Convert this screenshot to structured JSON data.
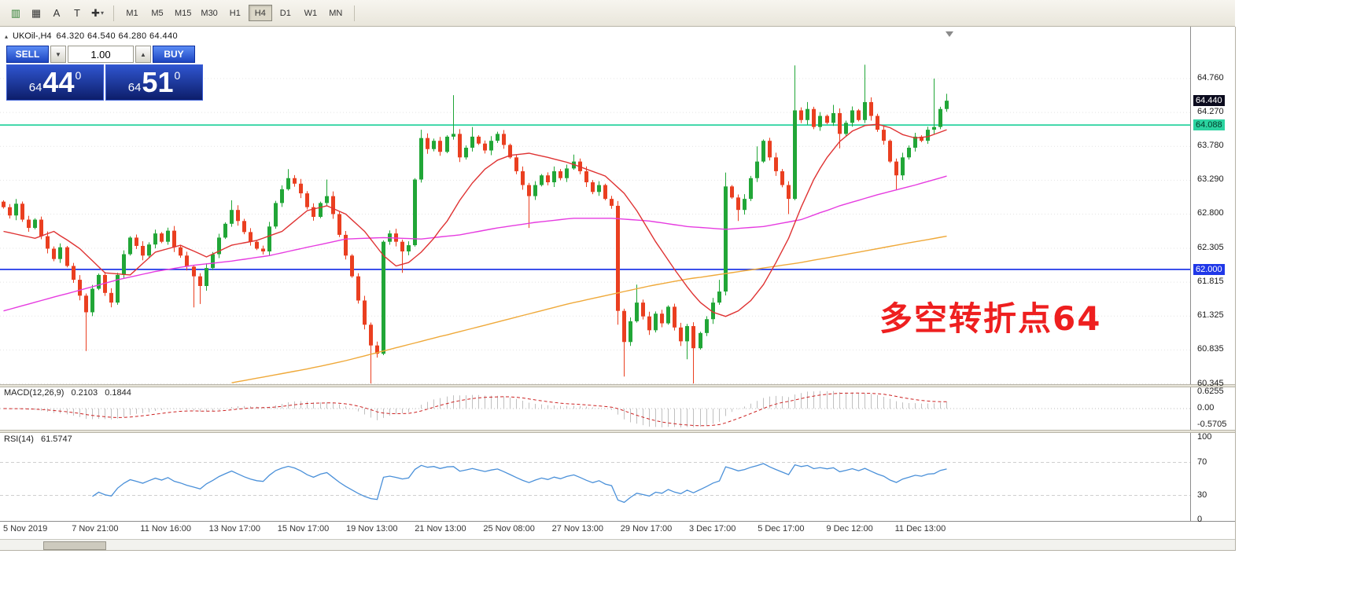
{
  "colors": {
    "bull": "#21a637",
    "bear": "#ea3f20",
    "ma_fast": "#df3333",
    "ma_mid": "#e63ce0",
    "ma_slow": "#efa93a",
    "macd_hist": "#c0c0c0",
    "macd_signal": "#cc2222",
    "rsi_line": "#4a90d9",
    "annotation": "#ee1f1f",
    "grid": "#e4e4e4"
  },
  "toolbar": {
    "icons": [
      {
        "name": "chart-type-icon",
        "glyph": "▥"
      },
      {
        "name": "tile-windows-icon",
        "glyph": "▦"
      },
      {
        "name": "font-icon",
        "glyph": "A"
      },
      {
        "name": "text-label-icon",
        "glyph": "T"
      },
      {
        "name": "crosshair-icon",
        "glyph": "✚",
        "caret": "▾"
      }
    ],
    "timeframes": [
      "M1",
      "M5",
      "M15",
      "M30",
      "H1",
      "H4",
      "D1",
      "W1",
      "MN"
    ],
    "active_timeframe": "H4"
  },
  "chart_header": {
    "collapse_icon": "▴",
    "symbol": "UKOil-,H4",
    "ohlc": "64.320 64.540 64.280 64.440"
  },
  "trade_panel": {
    "sell_label": "SELL",
    "buy_label": "BUY",
    "lot_value": "1.00",
    "dropdown_glyph": "▼",
    "spinner_glyph": "▲",
    "sell_price": {
      "small": "64",
      "big": "44",
      "sup": "0"
    },
    "buy_price": {
      "small": "64",
      "big": "51",
      "sup": "0"
    }
  },
  "annotation": {
    "text": "多空转折点64"
  },
  "price_scale": {
    "ticks": [
      "64.760",
      "64.270",
      "63.780",
      "63.290",
      "62.800",
      "62.305",
      "61.815",
      "61.325",
      "60.835",
      "60.345"
    ]
  },
  "macd_panel": {
    "label": "MACD(12,26,9)",
    "value": "0.2103",
    "signal_value": "0.1844",
    "axis": [
      "0.6255",
      "0.00",
      "-0.5705"
    ]
  },
  "rsi_panel": {
    "label": "RSI(14)",
    "value": "61.5747",
    "axis": [
      "100",
      "70",
      "30",
      "0"
    ],
    "levels": [
      70,
      30
    ]
  },
  "time_axis": {
    "labels": [
      "5 Nov 2019",
      "7 Nov 21:00",
      "11 Nov 16:00",
      "13 Nov 17:00",
      "15 Nov 17:00",
      "19 Nov 13:00",
      "21 Nov 13:00",
      "25 Nov 08:00",
      "27 Nov 13:00",
      "29 Nov 17:00",
      "3 Dec 17:00",
      "5 Dec 17:00",
      "9 Dec 12:00",
      "11 Dec 13:00"
    ]
  },
  "chart_data": {
    "type": "candlestick",
    "symbol": "UKOil-",
    "timeframe": "H4",
    "open_first": 62.98,
    "closes": [
      62.9,
      62.78,
      62.95,
      62.72,
      62.6,
      62.72,
      62.48,
      62.3,
      62.15,
      62.32,
      62.05,
      61.85,
      61.62,
      61.38,
      61.72,
      61.92,
      61.66,
      61.52,
      61.92,
      62.22,
      62.46,
      62.34,
      62.2,
      62.36,
      62.52,
      62.4,
      62.56,
      62.32,
      62.2,
      62.04,
      61.9,
      61.76,
      62.02,
      62.22,
      62.46,
      62.66,
      62.86,
      62.7,
      62.54,
      62.4,
      62.3,
      62.26,
      62.62,
      62.96,
      63.16,
      63.32,
      63.24,
      63.1,
      62.9,
      62.76,
      62.96,
      63.06,
      62.8,
      62.5,
      62.2,
      61.9,
      61.55,
      61.2,
      60.9,
      60.78,
      62.4,
      62.52,
      62.4,
      62.26,
      62.35,
      63.3,
      63.9,
      63.74,
      63.86,
      63.7,
      63.92,
      63.96,
      63.62,
      63.76,
      63.92,
      63.82,
      63.72,
      63.86,
      63.96,
      63.8,
      63.62,
      63.42,
      63.22,
      63.06,
      63.22,
      63.36,
      63.26,
      63.42,
      63.32,
      63.46,
      63.56,
      63.42,
      63.26,
      63.12,
      63.22,
      63.02,
      62.92,
      61.4,
      60.95,
      61.25,
      61.52,
      61.32,
      61.12,
      61.36,
      61.22,
      61.46,
      61.16,
      60.96,
      61.18,
      60.86,
      61.08,
      61.28,
      61.52,
      61.68,
      63.2,
      63.04,
      62.86,
      63.02,
      63.32,
      63.56,
      63.86,
      63.62,
      63.42,
      63.22,
      63.02,
      64.3,
      64.16,
      64.32,
      64.06,
      64.22,
      64.12,
      64.26,
      63.96,
      64.12,
      64.3,
      64.16,
      64.42,
      64.22,
      64.02,
      63.86,
      63.56,
      63.36,
      63.62,
      63.76,
      63.92,
      63.86,
      64.02,
      64.06,
      64.32,
      64.44
    ],
    "wick_highs": {
      "36": 63.0,
      "45": 63.45,
      "51": 63.3,
      "66": 64.02,
      "71": 64.52,
      "74": 64.06,
      "90": 63.66,
      "100": 61.78,
      "113": 61.85,
      "114": 63.4,
      "119": 63.78,
      "125": 64.95,
      "127": 64.42,
      "131": 64.38,
      "136": 64.96,
      "147": 64.76,
      "149": 64.54
    },
    "wick_lows": {
      "13": 60.82,
      "30": 61.45,
      "31": 61.5,
      "58": 60.35,
      "63": 61.95,
      "83": 62.6,
      "97": 61.2,
      "98": 60.45,
      "108": 60.7,
      "109": 60.35,
      "116": 62.7,
      "124": 62.8,
      "132": 63.75,
      "141": 63.15,
      "149": 64.28
    },
    "levels": [
      {
        "price": 64.088,
        "label": "64.088",
        "color": "#2bd3a0",
        "text_color": "#003a28"
      },
      {
        "price": 62.0,
        "label": "62.000",
        "color": "#2038e8",
        "text_color": "#ffffff"
      }
    ],
    "bid": {
      "price": 64.44,
      "label": "64.440",
      "color": "#0b0b1e",
      "text_color": "#ffffff"
    },
    "ma_fast": [
      [
        0,
        62.55
      ],
      [
        5,
        62.45
      ],
      [
        8,
        62.55
      ],
      [
        12,
        62.3
      ],
      [
        16,
        61.95
      ],
      [
        20,
        61.92
      ],
      [
        24,
        62.25
      ],
      [
        28,
        62.35
      ],
      [
        32,
        62.18
      ],
      [
        36,
        62.35
      ],
      [
        40,
        62.42
      ],
      [
        44,
        62.55
      ],
      [
        48,
        62.85
      ],
      [
        51,
        62.92
      ],
      [
        54,
        62.8
      ],
      [
        57,
        62.55
      ],
      [
        60,
        62.2
      ],
      [
        62,
        62.05
      ],
      [
        64,
        62.1
      ],
      [
        66,
        62.25
      ],
      [
        68,
        62.45
      ],
      [
        70,
        62.7
      ],
      [
        72,
        63.0
      ],
      [
        74,
        63.25
      ],
      [
        76,
        63.45
      ],
      [
        78,
        63.58
      ],
      [
        80,
        63.65
      ],
      [
        83,
        63.68
      ],
      [
        86,
        63.62
      ],
      [
        89,
        63.55
      ],
      [
        92,
        63.45
      ],
      [
        95,
        63.35
      ],
      [
        98,
        63.1
      ],
      [
        100,
        62.85
      ],
      [
        103,
        62.4
      ],
      [
        106,
        62.0
      ],
      [
        108,
        61.75
      ],
      [
        110,
        61.52
      ],
      [
        112,
        61.38
      ],
      [
        114,
        61.32
      ],
      [
        116,
        61.4
      ],
      [
        118,
        61.55
      ],
      [
        120,
        61.78
      ],
      [
        122,
        62.1
      ],
      [
        124,
        62.45
      ],
      [
        126,
        62.9
      ],
      [
        128,
        63.3
      ],
      [
        130,
        63.62
      ],
      [
        132,
        63.85
      ],
      [
        134,
        64.0
      ],
      [
        136,
        64.08
      ],
      [
        138,
        64.1
      ],
      [
        140,
        64.05
      ],
      [
        142,
        63.95
      ],
      [
        144,
        63.9
      ],
      [
        146,
        63.92
      ],
      [
        149,
        64.02
      ]
    ],
    "ma_mid": [
      [
        0,
        61.4
      ],
      [
        6,
        61.55
      ],
      [
        12,
        61.7
      ],
      [
        18,
        61.85
      ],
      [
        24,
        61.97
      ],
      [
        30,
        62.06
      ],
      [
        36,
        62.12
      ],
      [
        42,
        62.2
      ],
      [
        48,
        62.32
      ],
      [
        54,
        62.44
      ],
      [
        60,
        62.46
      ],
      [
        66,
        62.44
      ],
      [
        72,
        62.5
      ],
      [
        78,
        62.6
      ],
      [
        84,
        62.68
      ],
      [
        90,
        62.74
      ],
      [
        96,
        62.74
      ],
      [
        102,
        62.7
      ],
      [
        108,
        62.62
      ],
      [
        114,
        62.58
      ],
      [
        120,
        62.62
      ],
      [
        126,
        62.72
      ],
      [
        132,
        62.92
      ],
      [
        138,
        63.08
      ],
      [
        144,
        63.22
      ],
      [
        149,
        63.35
      ]
    ],
    "ma_slow": [
      [
        36,
        60.36
      ],
      [
        42,
        60.46
      ],
      [
        48,
        60.56
      ],
      [
        54,
        60.68
      ],
      [
        60,
        60.82
      ],
      [
        66,
        60.96
      ],
      [
        72,
        61.1
      ],
      [
        78,
        61.24
      ],
      [
        84,
        61.38
      ],
      [
        90,
        61.52
      ],
      [
        96,
        61.64
      ],
      [
        102,
        61.76
      ],
      [
        108,
        61.86
      ],
      [
        114,
        61.94
      ],
      [
        120,
        62.02
      ],
      [
        126,
        62.1
      ],
      [
        132,
        62.2
      ],
      [
        138,
        62.3
      ],
      [
        144,
        62.4
      ],
      [
        149,
        62.48
      ]
    ],
    "indicators": {
      "macd": {
        "fast": 12,
        "slow": 26,
        "signal": 9
      },
      "rsi": {
        "period": 14
      }
    }
  }
}
